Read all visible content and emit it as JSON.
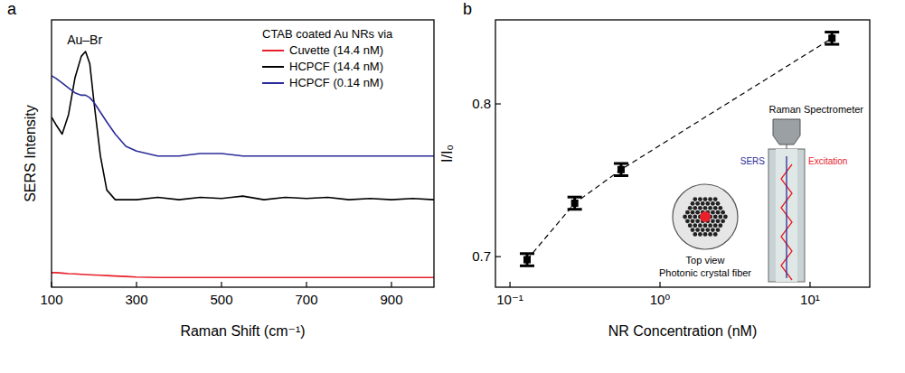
{
  "chart_data": [
    {
      "type": "line",
      "panel_label": "a",
      "x_label": "Raman Shift (cm⁻¹)",
      "y_label": "SERS Intensity",
      "legend": "upper right",
      "legend_title": "CTAB coated Au NRs via",
      "tick_labels": "x",
      "x": [
        100,
        110,
        125,
        140,
        155,
        170,
        180,
        190,
        200,
        215,
        230,
        250,
        275,
        300,
        350,
        400,
        450,
        500,
        550,
        600,
        650,
        700,
        750,
        800,
        850,
        900,
        950,
        1000
      ],
      "series": [
        {
          "name": "Cuvette (14.4 nM)",
          "color": "#e8202a",
          "values": [
            6,
            6,
            5.8,
            5.6,
            5.5,
            5.3,
            5.2,
            5.1,
            5,
            4.9,
            4.8,
            4.6,
            4.4,
            4.2,
            4,
            4,
            4,
            4,
            4,
            4,
            4,
            4,
            4,
            4,
            4,
            4,
            4,
            4
          ]
        },
        {
          "name": "HCPCF (14.4 nM)",
          "color": "#000000",
          "values": [
            70,
            67,
            63,
            71,
            86,
            95,
            97,
            92,
            76,
            54,
            40,
            36,
            36,
            36,
            37,
            36,
            37,
            36.5,
            37.5,
            36,
            37,
            36.5,
            37,
            36,
            36.5,
            36,
            36.5,
            36
          ]
        },
        {
          "name": "HCPCF (0.14 nM)",
          "color": "#2b2b9a",
          "values": [
            87,
            86,
            84,
            82,
            80,
            79,
            79,
            78,
            76,
            72,
            68,
            63,
            58,
            56,
            54,
            54,
            55,
            55,
            54,
            54,
            54,
            54,
            54,
            54,
            54,
            54,
            54,
            54
          ]
        }
      ],
      "xlim": [
        100,
        1000
      ],
      "xticks": [
        100,
        300,
        500,
        700,
        900
      ],
      "ylim": [
        0,
        110
      ],
      "annotations": [
        {
          "text": "Au–Br",
          "x": 178,
          "y": 97
        }
      ]
    },
    {
      "type": "scatter",
      "panel_label": "b",
      "x_label": "NR Concentration (nM)",
      "y_label": "I/I₀",
      "log": "x",
      "marker": "square",
      "line_style": "dashed",
      "color": "#000000",
      "x": [
        0.13,
        0.27,
        0.55,
        14
      ],
      "values": [
        0.698,
        0.735,
        0.757,
        0.843
      ],
      "errors": [
        0.004,
        0.004,
        0.004,
        0.004
      ],
      "xlim": [
        0.08,
        25
      ],
      "xticks": [
        {
          "value": 0.1,
          "label": "10⁻¹"
        },
        {
          "value": 1,
          "label": "10⁰"
        },
        {
          "value": 10,
          "label": "10¹"
        }
      ],
      "ylim": [
        0.68,
        0.855
      ],
      "yticks": [
        0.7,
        0.8
      ],
      "annotations": [
        "Raman Spectrometer",
        "SERS",
        "Excitation",
        "Top view",
        "Photonic crystal fiber"
      ]
    }
  ]
}
